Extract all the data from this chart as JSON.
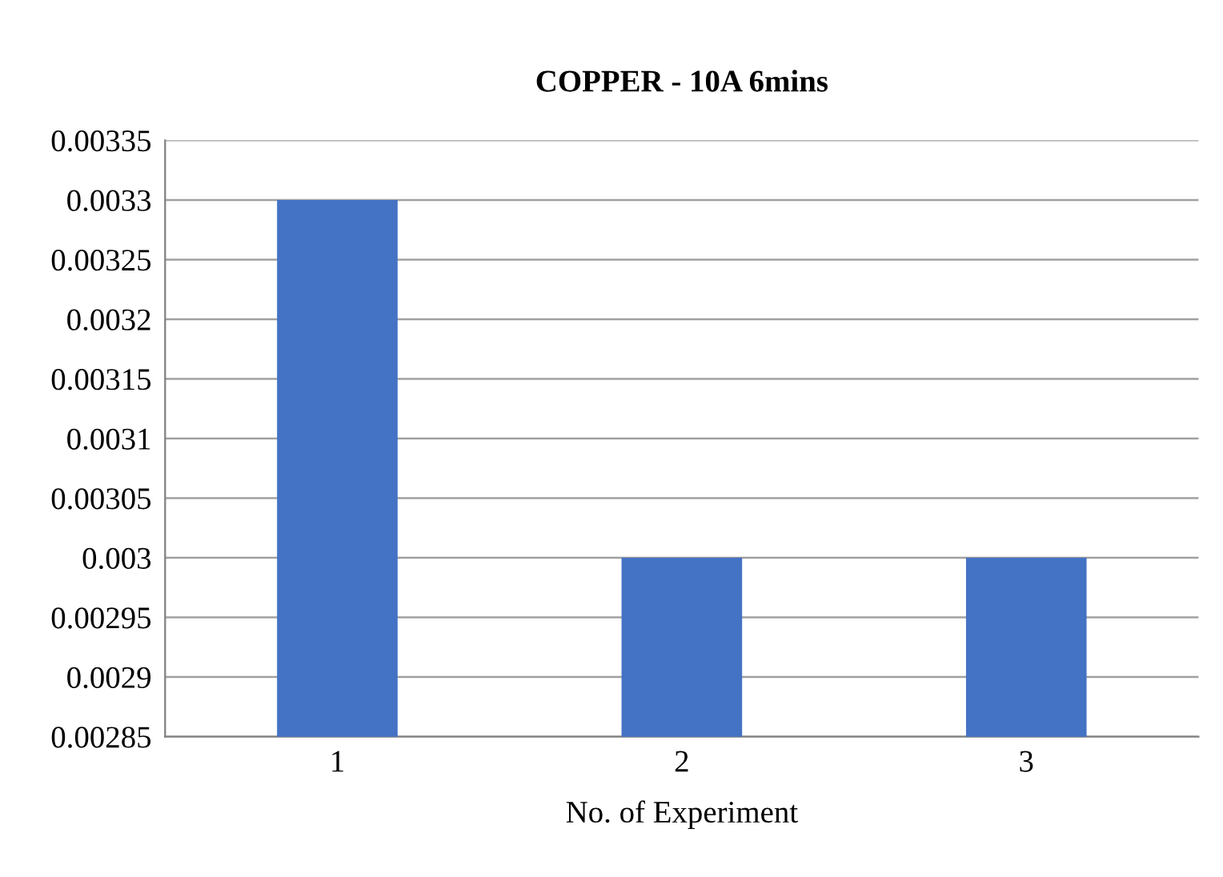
{
  "chart_data": {
    "type": "bar",
    "title": "COPPER - 10A 6mins",
    "xlabel": "No. of Experiment",
    "categories": [
      "1",
      "2",
      "3"
    ],
    "values": [
      0.0033,
      0.003,
      0.003
    ],
    "color": "#4472c4",
    "ylim": [
      0.00285,
      0.00335
    ],
    "yticks": [
      0.00285,
      0.0029,
      0.00295,
      0.003,
      0.00305,
      0.0031,
      0.00315,
      0.0032,
      0.00325,
      0.0033,
      0.00335
    ],
    "grid": "y"
  }
}
